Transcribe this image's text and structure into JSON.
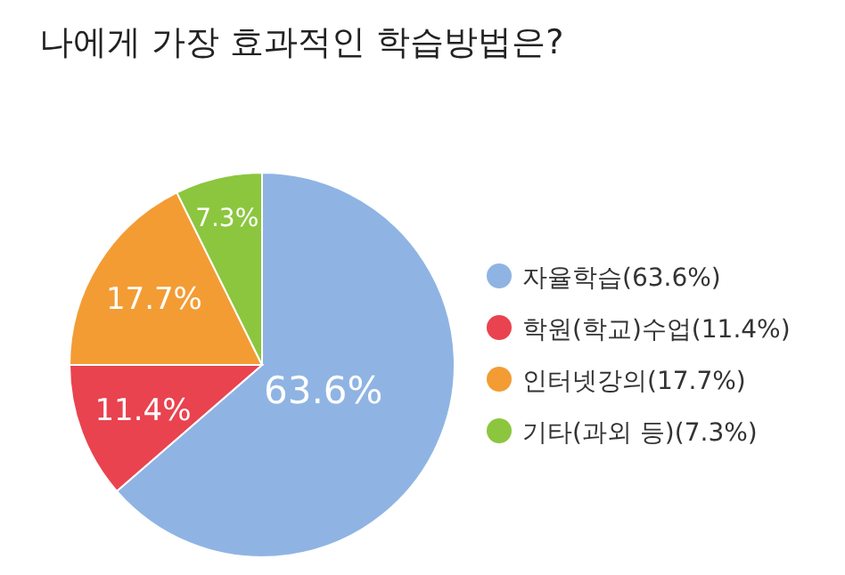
{
  "chart_data": {
    "type": "pie",
    "title": "나에게 가장 효과적인 학습방법은?",
    "categories": [
      "자율학습(63.6%)",
      "학원(학교)수업(11.4%)",
      "인터넷강의(17.7%)",
      "기타(과외 등)(7.3%)"
    ],
    "values": [
      63.6,
      11.4,
      17.7,
      7.3
    ],
    "colors": [
      "#8fb4e3",
      "#e9434f",
      "#f39c34",
      "#8cc63f"
    ],
    "value_labels": [
      "63.6%",
      "11.4%",
      "17.7%",
      "7.3%"
    ],
    "legend": "right"
  }
}
